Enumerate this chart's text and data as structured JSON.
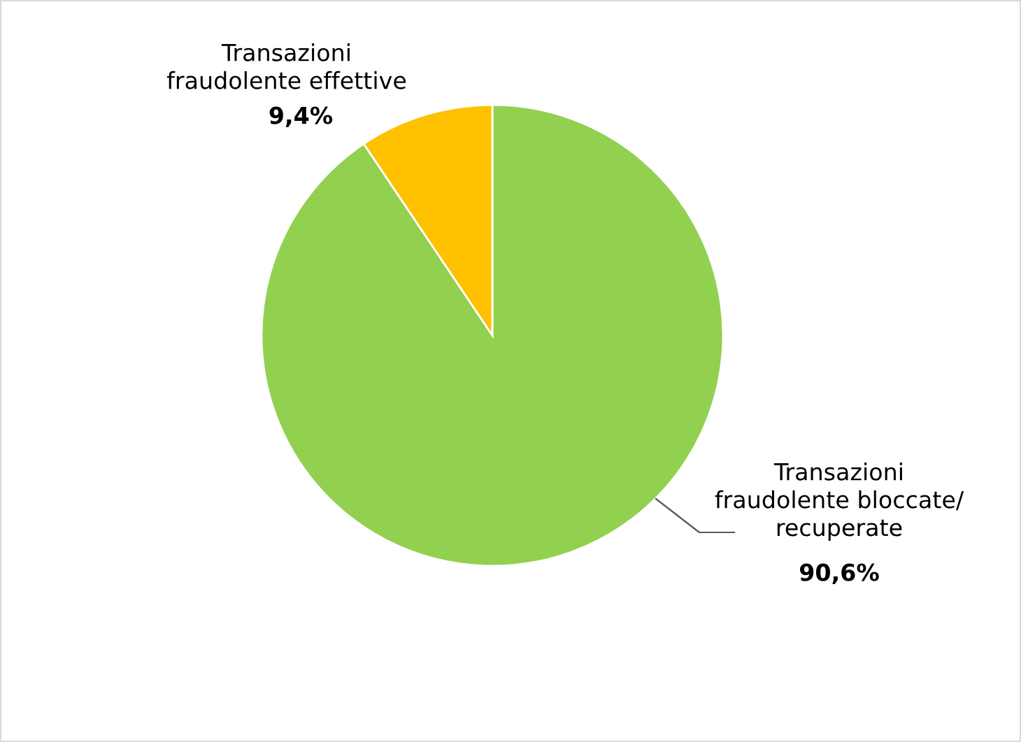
{
  "chart_data": {
    "type": "pie",
    "categories": [
      "Transazioni\nfraudolente bloccate/\nrecuperate",
      "Transazioni\nfraudolente effettive"
    ],
    "values": [
      90.6,
      9.4
    ],
    "colors": [
      "#92d050",
      "#ffc000"
    ],
    "value_labels": [
      "90,6%",
      "9,4%"
    ]
  }
}
